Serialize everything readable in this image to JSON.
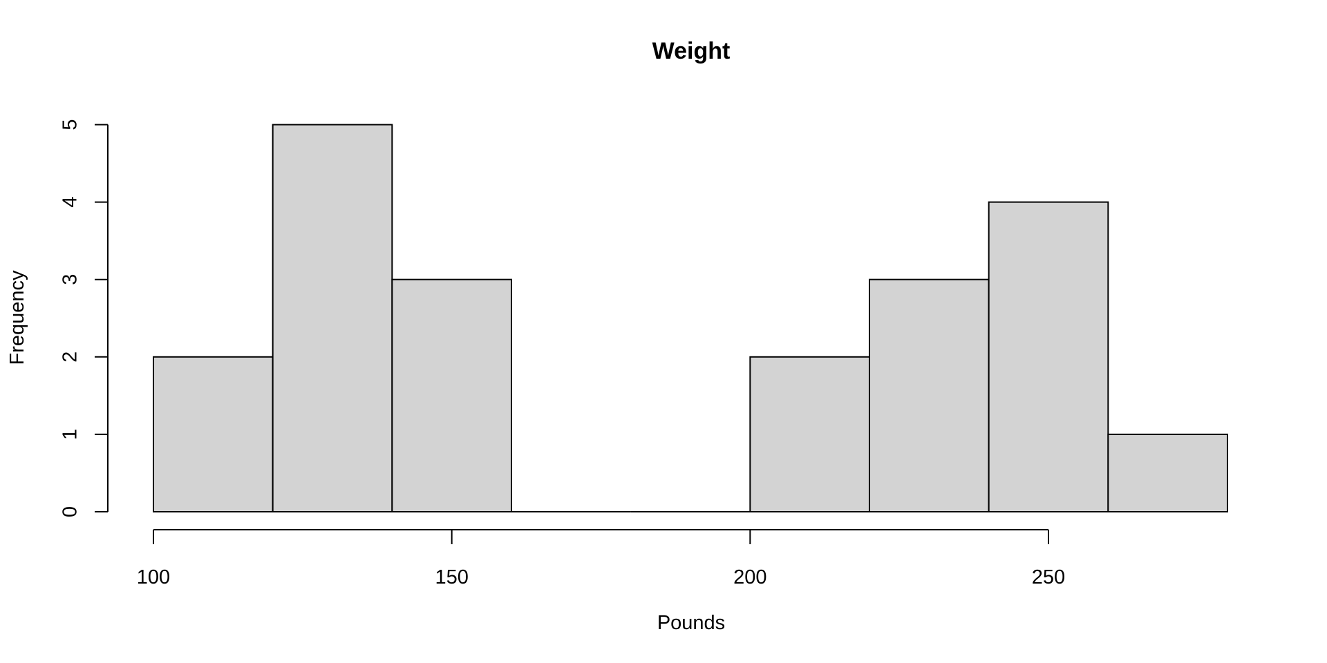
{
  "figure": {
    "background": "#ffffff"
  },
  "chart_data": {
    "type": "bar",
    "subtype": "histogram",
    "title": "Weight",
    "xlabel": "Pounds",
    "ylabel": "Frequency",
    "bin_edges": [
      100,
      120,
      140,
      160,
      180,
      200,
      220,
      240,
      260,
      280
    ],
    "counts": [
      2,
      5,
      3,
      0,
      0,
      2,
      3,
      4,
      1
    ],
    "x_ticks": [
      100,
      150,
      200,
      250
    ],
    "x_tick_labels": [
      "100",
      "150",
      "200",
      "250"
    ],
    "y_ticks": [
      0,
      1,
      2,
      3,
      4,
      5
    ],
    "y_tick_labels": [
      "0",
      "1",
      "2",
      "3",
      "4",
      "5"
    ],
    "xlim": [
      100,
      280
    ],
    "ylim": [
      0,
      5
    ],
    "grid": false,
    "legend": null,
    "colors": {
      "bar_fill": "#d3d3d3",
      "bar_border": "#000000",
      "axis_color": "#000000",
      "text_color": "#000000"
    }
  }
}
